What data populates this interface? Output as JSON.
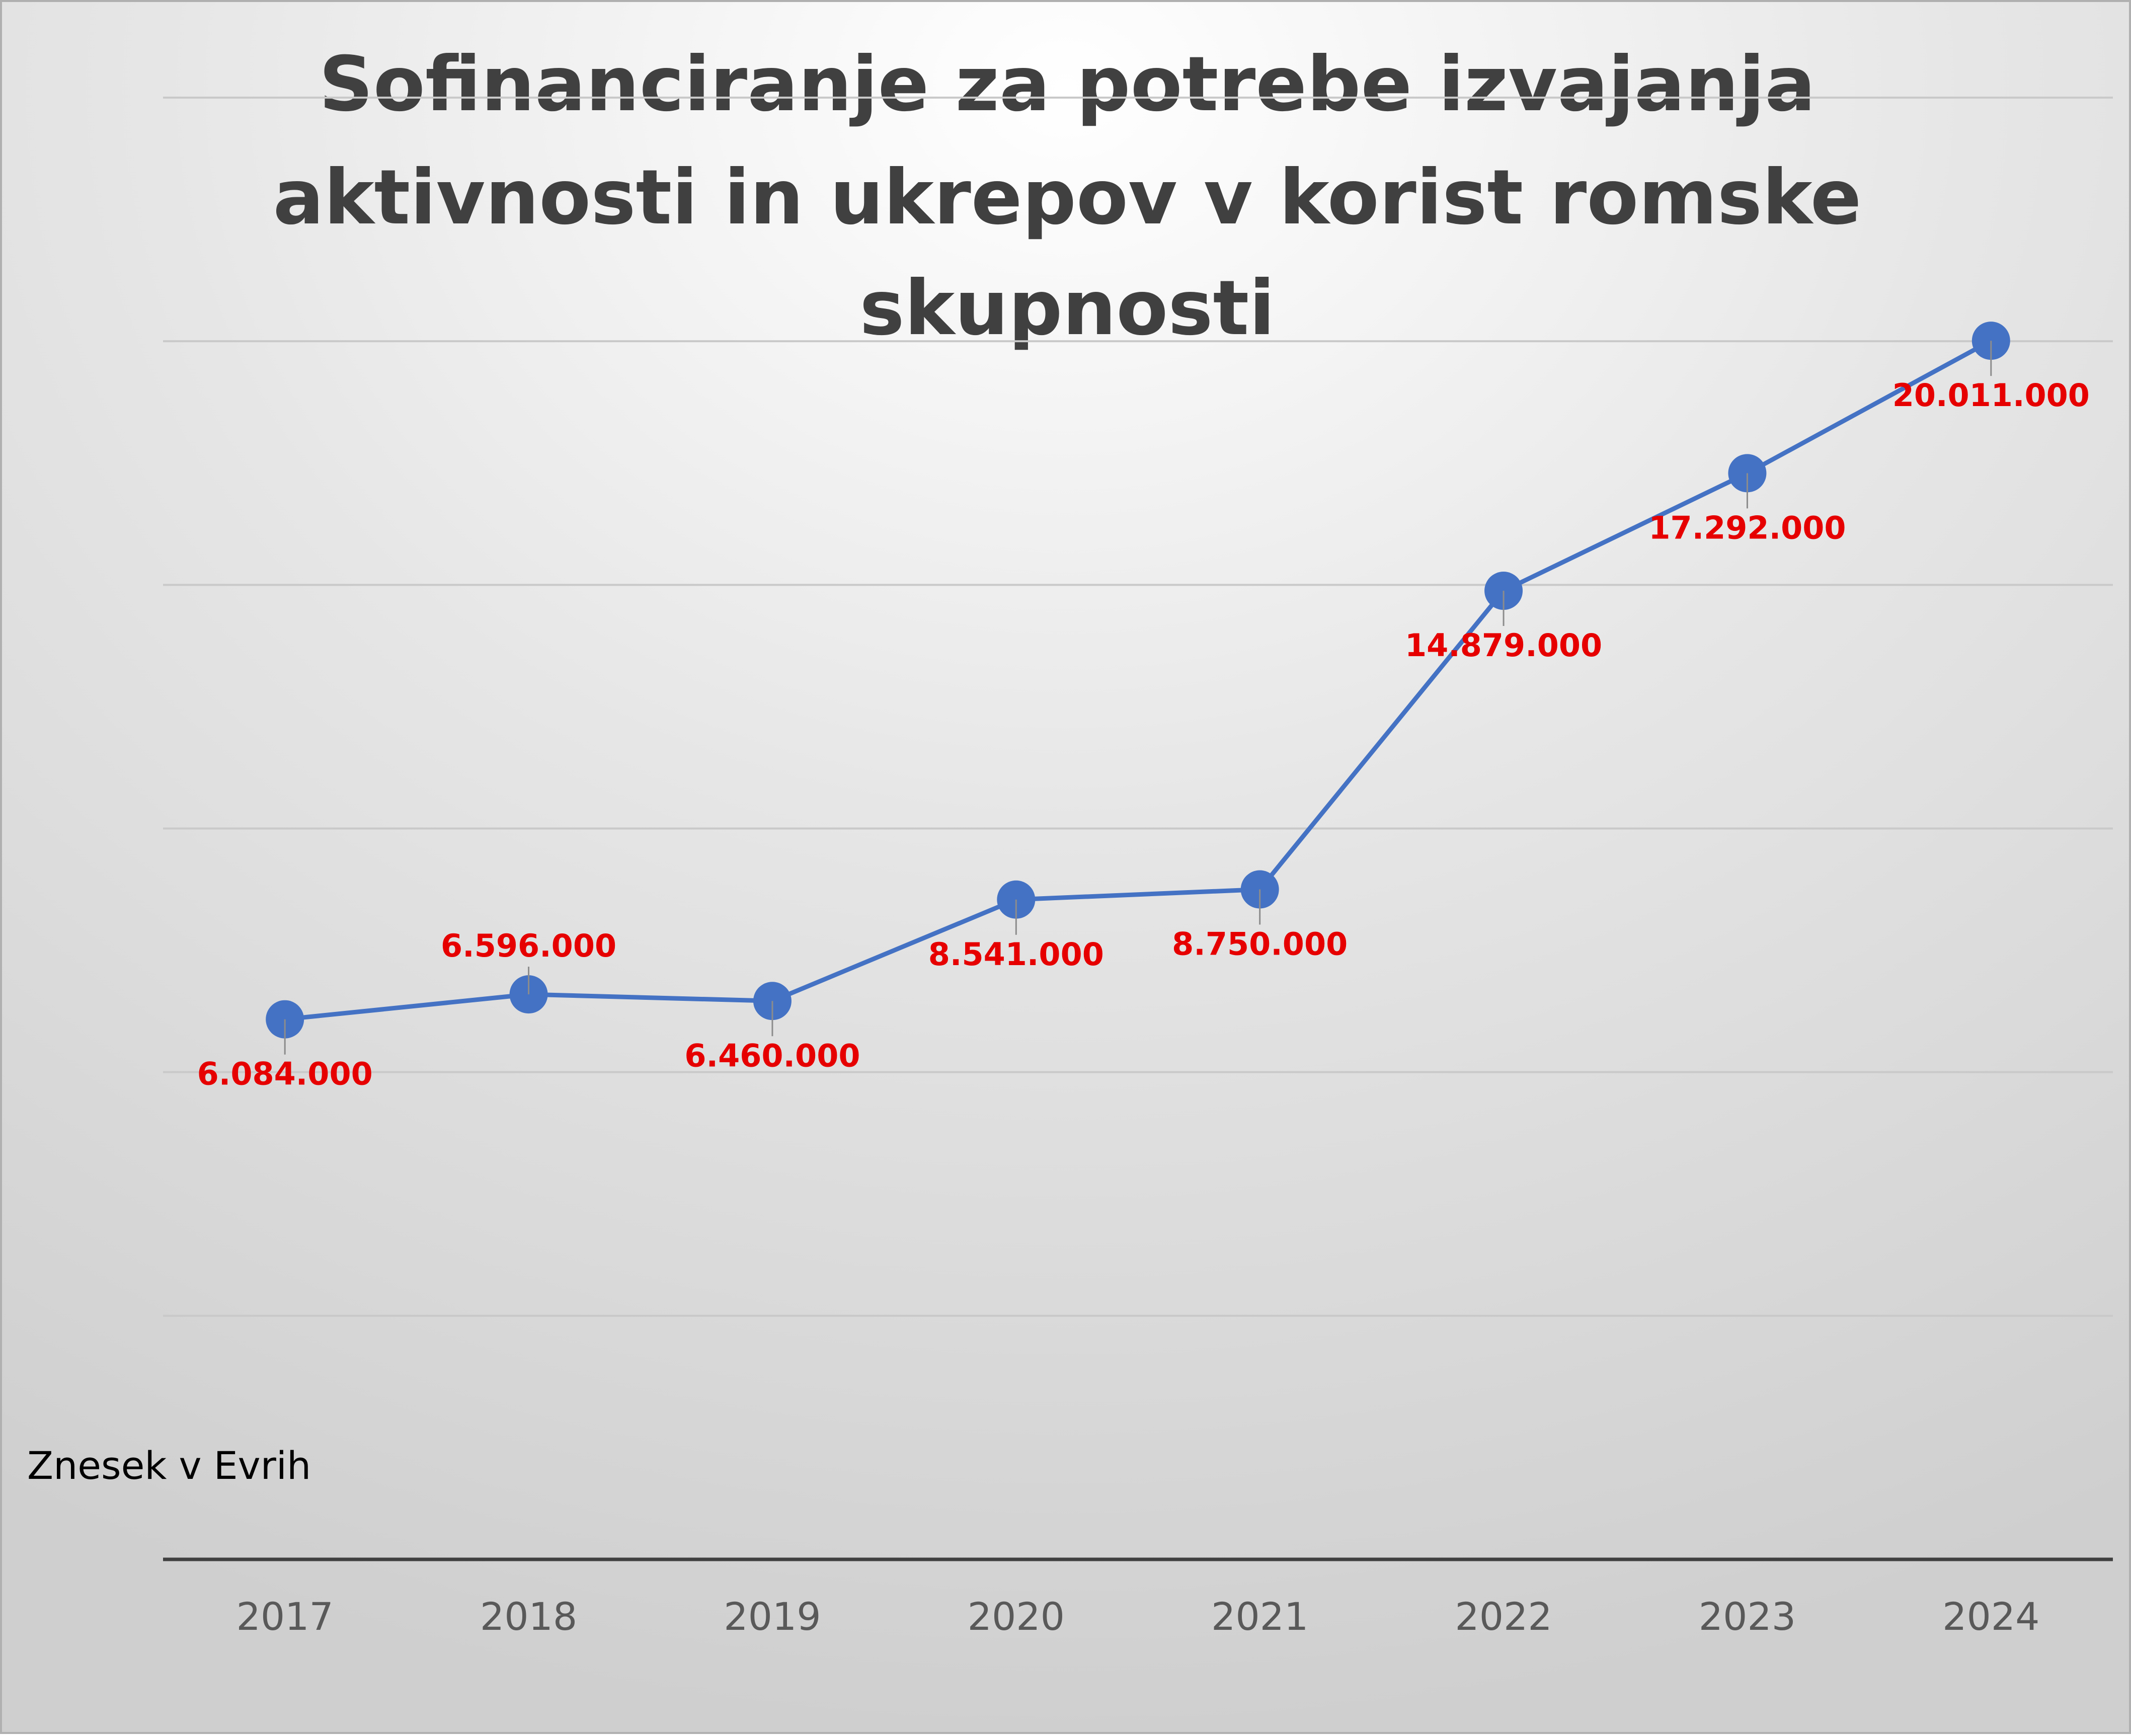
{
  "chart_data": {
    "type": "line",
    "title_lines": [
      "Sofinanciranje za potrebe izvajanja",
      "aktivnosti in ukrepov v korist romske",
      "skupnosti"
    ],
    "ylabel": "Znesek v Evrih",
    "xlabel": "",
    "categories": [
      "2017",
      "2018",
      "2019",
      "2020",
      "2021",
      "2022",
      "2023",
      "2024"
    ],
    "series": [
      {
        "values": [
          6084000,
          6596000,
          6460000,
          8541000,
          8750000,
          14879000,
          17292000,
          20011000
        ],
        "labels": [
          "6.084.000",
          "6.596.000",
          "6.460.000",
          "8.541.000",
          "8.750.000",
          "14.879.000",
          "17.292.000",
          "20.011.000"
        ],
        "color": "#4472c4",
        "marker": "circle"
      }
    ],
    "label_color": "#e60000",
    "ylim": [
      -5000000,
      25000000
    ],
    "gridline_step": 5000000,
    "grid": true,
    "show_y_tick_labels": false,
    "legend": "none"
  }
}
